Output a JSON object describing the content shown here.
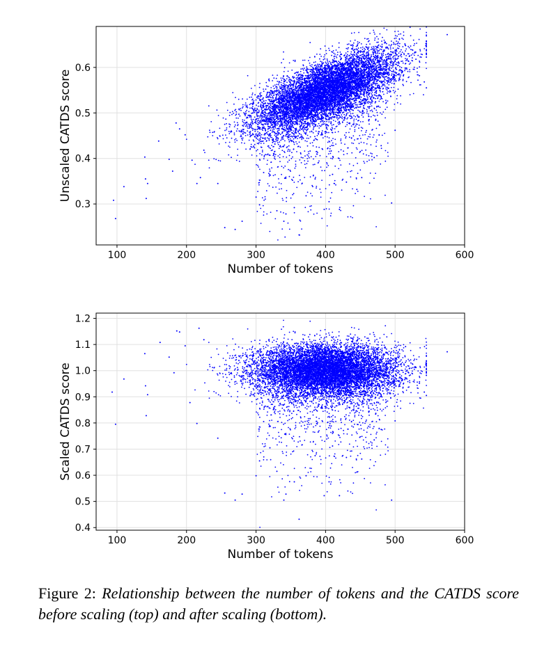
{
  "chart_data": [
    {
      "type": "scatter",
      "xlabel": "Number of tokens",
      "ylabel": "Unscaled CATDS score",
      "xlim": [
        70,
        600
      ],
      "ylim": [
        0.21,
        0.69
      ],
      "xticks": [
        100,
        200,
        300,
        400,
        500,
        600
      ],
      "yticks": [
        0.3,
        0.4,
        0.5,
        0.6
      ],
      "ytick_labels": [
        "0.3",
        "0.4",
        "0.5",
        "0.6"
      ],
      "grid": true,
      "marker_color": "#0000ff",
      "cloud": {
        "points": 9000,
        "x_mean": 400,
        "x_sd": 52,
        "y_intercept": 0.547,
        "y_slope": 0.0006,
        "y_sd": 0.032
      },
      "outliers": [
        [
          95,
          0.308
        ],
        [
          98,
          0.268
        ],
        [
          110,
          0.338
        ],
        [
          140,
          0.403
        ],
        [
          141,
          0.355
        ],
        [
          142,
          0.312
        ],
        [
          144,
          0.345
        ],
        [
          160,
          0.438
        ],
        [
          175,
          0.398
        ],
        [
          180,
          0.372
        ],
        [
          185,
          0.478
        ],
        [
          190,
          0.465
        ],
        [
          198,
          0.452
        ],
        [
          208,
          0.396
        ],
        [
          215,
          0.345
        ],
        [
          220,
          0.358
        ],
        [
          225,
          0.418
        ],
        [
          245,
          0.345
        ],
        [
          255,
          0.248
        ],
        [
          270,
          0.244
        ],
        [
          280,
          0.262
        ],
        [
          300,
          0.315
        ],
        [
          305,
          0.298
        ],
        [
          320,
          0.372
        ],
        [
          330,
          0.285
        ],
        [
          340,
          0.262
        ],
        [
          343,
          0.278
        ],
        [
          355,
          0.292
        ],
        [
          362,
          0.232
        ],
        [
          372,
          0.318
        ],
        [
          385,
          0.355
        ],
        [
          398,
          0.288
        ],
        [
          405,
          0.305
        ],
        [
          410,
          0.365
        ],
        [
          420,
          0.288
        ],
        [
          430,
          0.348
        ],
        [
          445,
          0.332
        ],
        [
          452,
          0.358
        ],
        [
          470,
          0.402
        ],
        [
          480,
          0.428
        ],
        [
          495,
          0.302
        ],
        [
          500,
          0.462
        ],
        [
          505,
          0.612
        ],
        [
          515,
          0.648
        ],
        [
          530,
          0.618
        ],
        [
          535,
          0.582
        ],
        [
          542,
          0.568
        ],
        [
          545,
          0.555
        ],
        [
          575,
          0.672
        ]
      ]
    },
    {
      "type": "scatter",
      "xlabel": "Number of tokens",
      "ylabel": "Scaled CATDS score",
      "xlim": [
        70,
        600
      ],
      "ylim": [
        0.39,
        1.22
      ],
      "xticks": [
        100,
        200,
        300,
        400,
        500,
        600
      ],
      "yticks": [
        0.4,
        0.5,
        0.6,
        0.7,
        0.8,
        0.9,
        1.0,
        1.1,
        1.2
      ],
      "ytick_labels": [
        "0.4",
        "0.5",
        "0.6",
        "0.7",
        "0.8",
        "0.9",
        "1.0",
        "1.1",
        "1.2"
      ],
      "grid": true,
      "marker_color": "#0000ff",
      "cloud": {
        "points": 9000,
        "x_mean": 400,
        "x_sd": 52,
        "y_intercept": 1.0,
        "y_slope": 0.0,
        "y_sd": 0.05
      },
      "outliers": [
        [
          93,
          0.918
        ],
        [
          98,
          0.795
        ],
        [
          110,
          0.968
        ],
        [
          140,
          1.065
        ],
        [
          141,
          0.942
        ],
        [
          142,
          0.828
        ],
        [
          144,
          0.908
        ],
        [
          162,
          1.108
        ],
        [
          175,
          1.052
        ],
        [
          182,
          0.992
        ],
        [
          186,
          1.152
        ],
        [
          190,
          1.148
        ],
        [
          198,
          1.095
        ],
        [
          205,
          0.878
        ],
        [
          215,
          0.798
        ],
        [
          218,
          1.162
        ],
        [
          225,
          1.118
        ],
        [
          245,
          0.742
        ],
        [
          255,
          0.532
        ],
        [
          270,
          0.505
        ],
        [
          280,
          0.528
        ],
        [
          300,
          0.598
        ],
        [
          305,
          0.655
        ],
        [
          320,
          0.705
        ],
        [
          330,
          0.615
        ],
        [
          340,
          0.505
        ],
        [
          343,
          0.528
        ],
        [
          355,
          0.575
        ],
        [
          362,
          0.432
        ],
        [
          372,
          0.598
        ],
        [
          385,
          0.675
        ],
        [
          398,
          0.522
        ],
        [
          405,
          0.575
        ],
        [
          410,
          0.712
        ],
        [
          420,
          0.522
        ],
        [
          430,
          0.668
        ],
        [
          445,
          0.612
        ],
        [
          452,
          0.662
        ],
        [
          470,
          0.735
        ],
        [
          480,
          0.775
        ],
        [
          495,
          0.505
        ],
        [
          500,
          0.808
        ],
        [
          505,
          1.052
        ],
        [
          515,
          1.092
        ],
        [
          530,
          1.012
        ],
        [
          535,
          0.952
        ],
        [
          542,
          0.918
        ],
        [
          545,
          0.905
        ],
        [
          575,
          1.072
        ]
      ]
    }
  ],
  "caption": {
    "label": "Figure 2:",
    "text": "Relationship between the number of tokens and the CATDS score before scaling (top) and after scaling (bottom)."
  }
}
